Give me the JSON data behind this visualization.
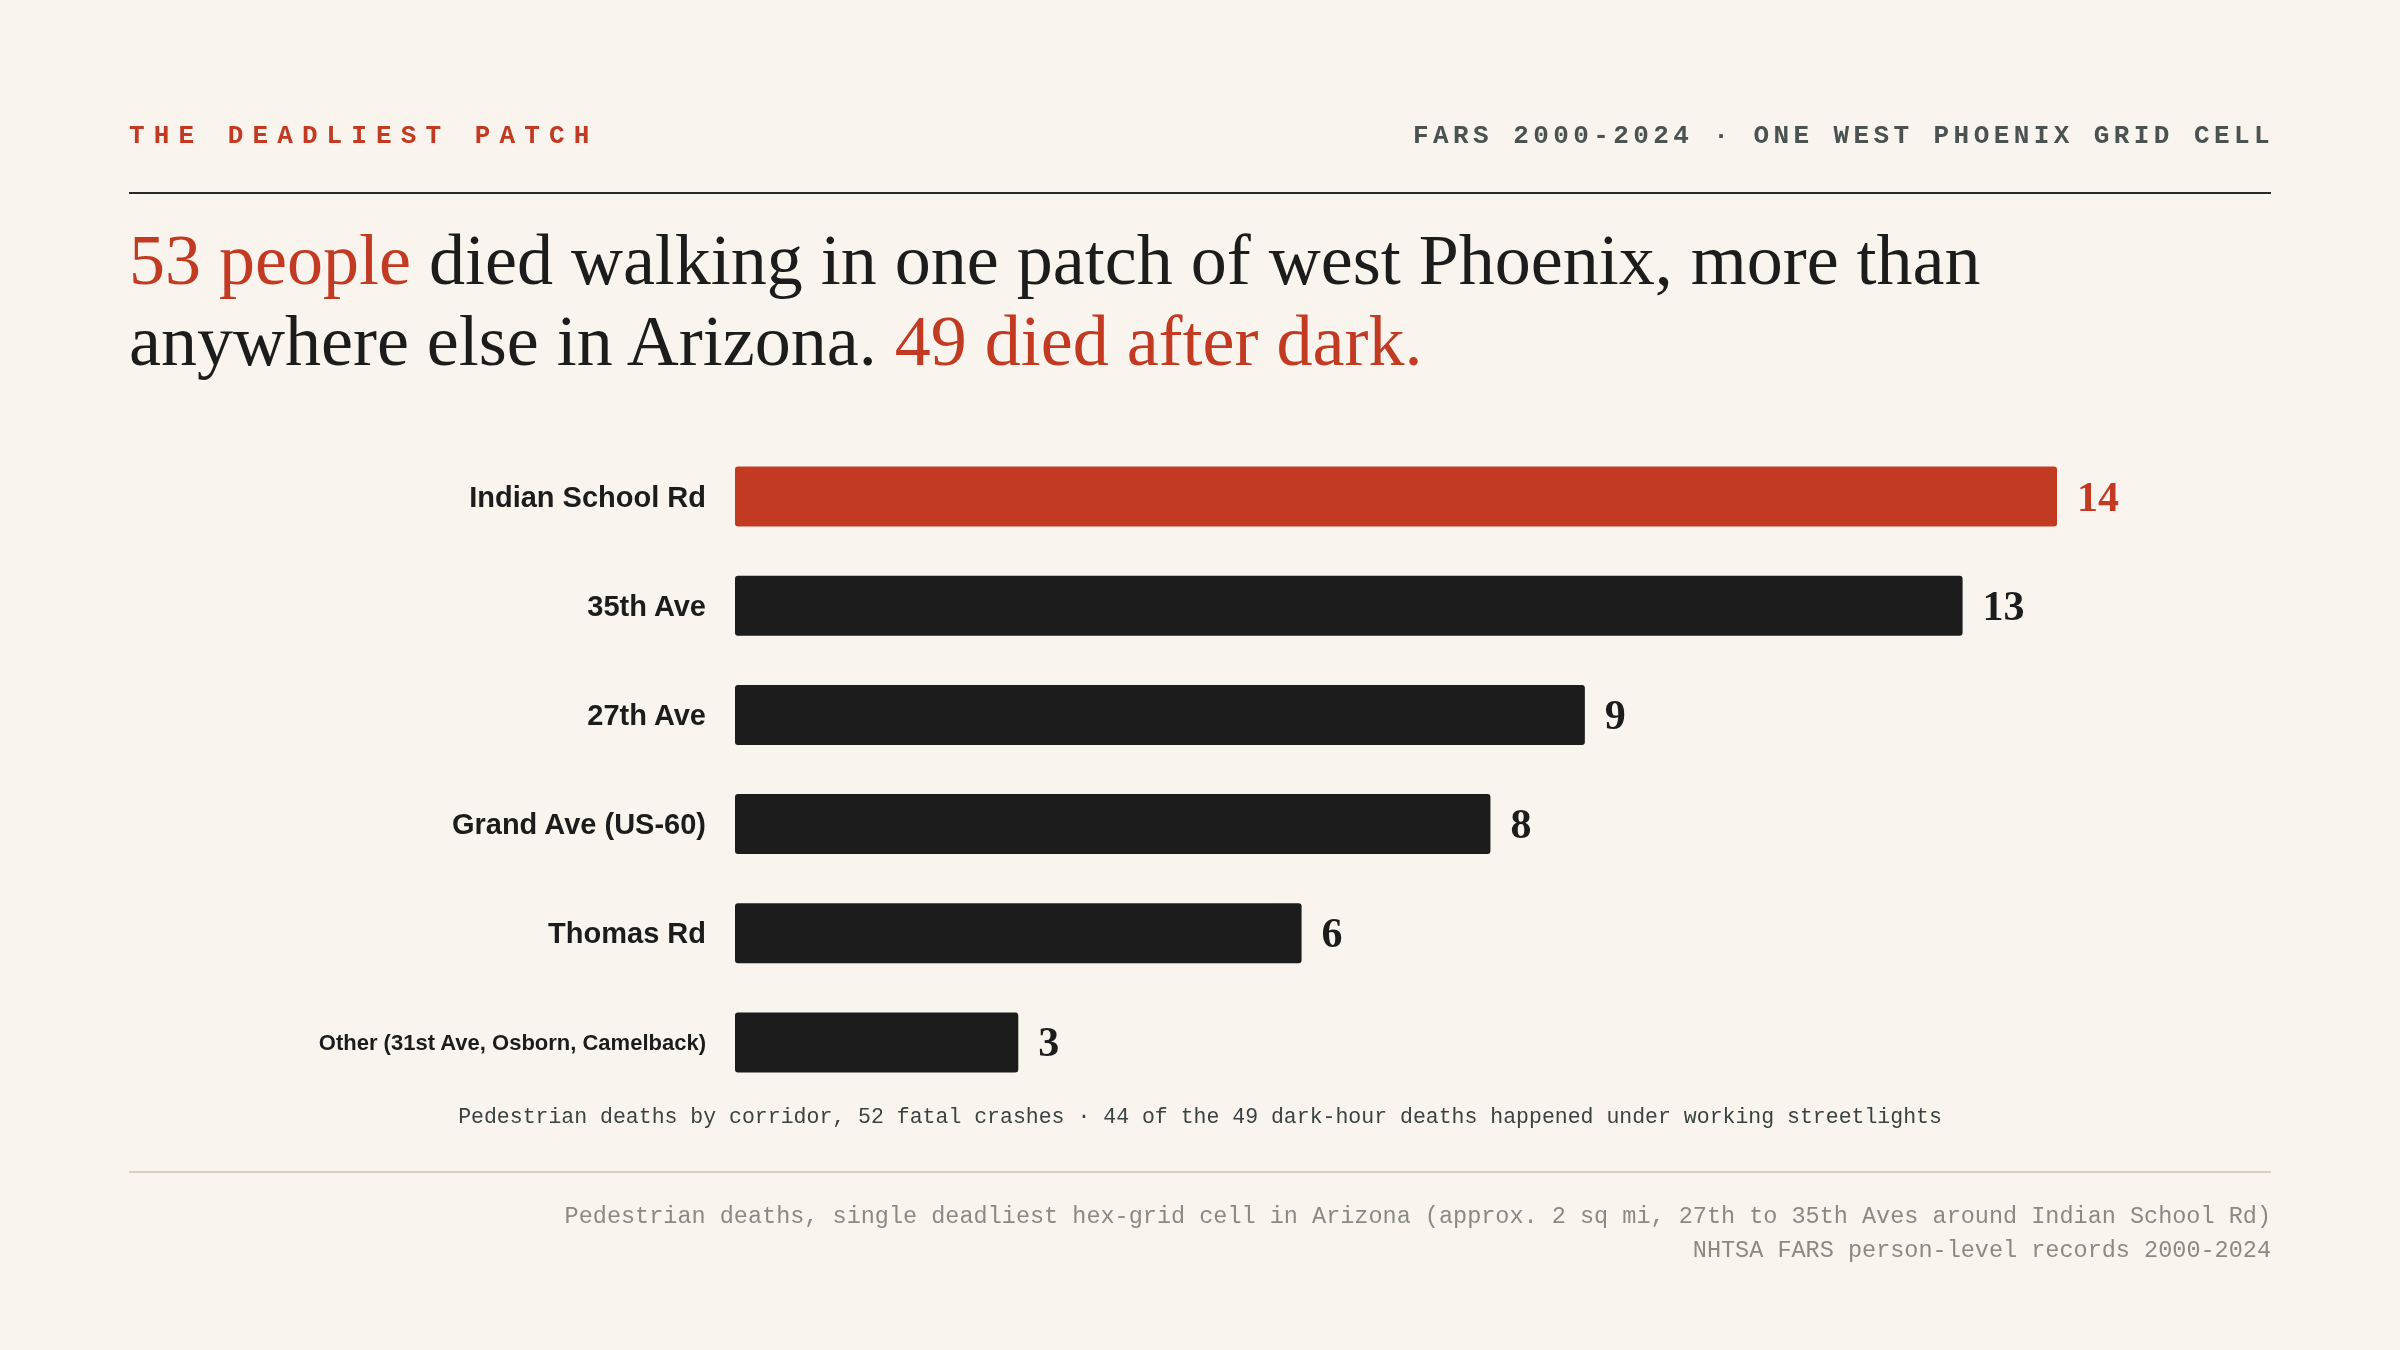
{
  "chart_data": {
    "type": "bar",
    "orientation": "horizontal",
    "title": "53 people died walking in one patch of west Phoenix, more than anywhere else in Arizona. 49 died after dark.",
    "categories": [
      "Indian School Rd",
      "35th Ave",
      "27th Ave",
      "Grand Ave (US-60)",
      "Thomas Rd",
      "Other (31st Ave, Osborn, Camelback)"
    ],
    "values": [
      14,
      13,
      9,
      8,
      6,
      3
    ],
    "colors": [
      "#c23a22",
      "#1c1c1c",
      "#1c1c1c",
      "#1c1c1c",
      "#1c1c1c",
      "#1c1c1c"
    ],
    "data_labels": true,
    "tick_labels": "y",
    "annotations": [
      "THE DEADLIEST PATCH",
      "FARS 2000-2024 · ONE WEST PHOENIX GRID CELL",
      "Pedestrian deaths by corridor, 52 fatal crashes · 44 of the 49 dark-hour deaths happened under working streetlights",
      "Pedestrian deaths, single deadliest hex-grid cell in Arizona (approx. 2 sq mi, 27th to 35th Aves around Indian School Rd)",
      "NHTSA FARS person-level records 2000-2024"
    ]
  }
}
